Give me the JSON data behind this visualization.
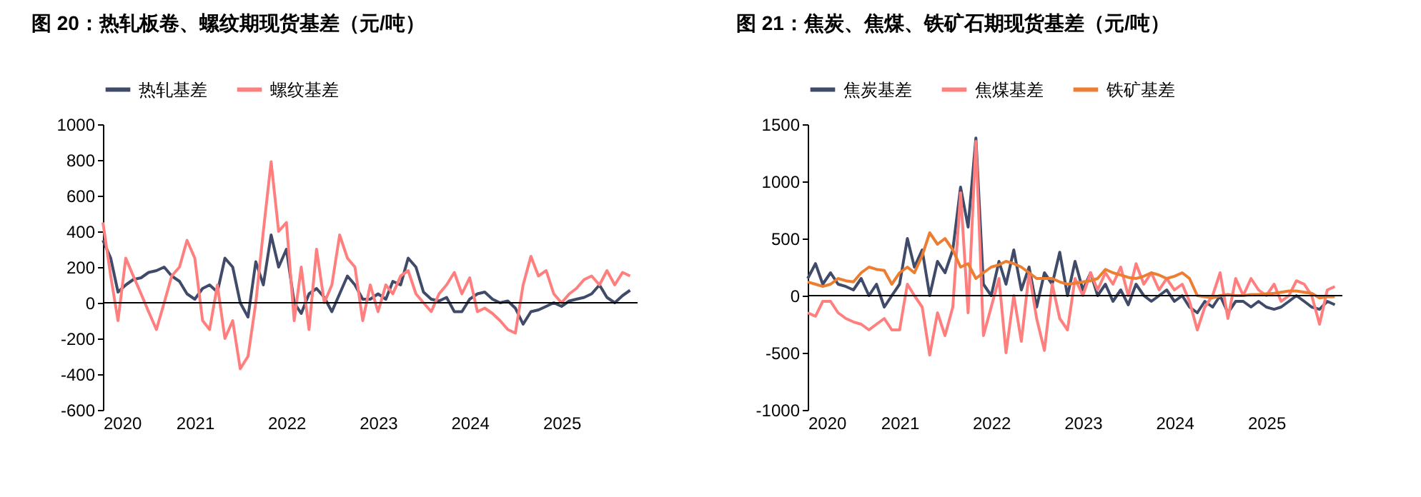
{
  "chart_data": [
    {
      "type": "line",
      "title": "图 20：热轧板卷、螺纹期现货基差（元/吨）",
      "legend": "top",
      "grid": false,
      "x": [
        "2020-01",
        "2020-02",
        "2020-03",
        "2020-04",
        "2020-05",
        "2020-06",
        "2020-07",
        "2020-08",
        "2020-09",
        "2020-10",
        "2020-11",
        "2020-12",
        "2021-01",
        "2021-02",
        "2021-03",
        "2021-04",
        "2021-05",
        "2021-06",
        "2021-07",
        "2021-08",
        "2021-09",
        "2021-10",
        "2021-11",
        "2021-12",
        "2022-01",
        "2022-02",
        "2022-03",
        "2022-04",
        "2022-05",
        "2022-06",
        "2022-07",
        "2022-08",
        "2022-09",
        "2022-10",
        "2022-11",
        "2022-12",
        "2023-01",
        "2023-02",
        "2023-03",
        "2023-04",
        "2023-05",
        "2023-06",
        "2023-07",
        "2023-08",
        "2023-09",
        "2023-10",
        "2023-11",
        "2023-12",
        "2024-01",
        "2024-02",
        "2024-03",
        "2024-04",
        "2024-05",
        "2024-06",
        "2024-07",
        "2024-08",
        "2024-09",
        "2024-10",
        "2024-11",
        "2024-12",
        "2025-01",
        "2025-02",
        "2025-03",
        "2025-04",
        "2025-05",
        "2025-06",
        "2025-07",
        "2025-08",
        "2025-09",
        "2025-10"
      ],
      "xlim": [
        "2020-01-01",
        "2025-10-31"
      ],
      "xticks": [
        "2020",
        "2021",
        "2022",
        "2023",
        "2024",
        "2025"
      ],
      "ylim": [
        -600,
        1000
      ],
      "yticks": [
        -600,
        -400,
        -200,
        0,
        200,
        400,
        600,
        800,
        1000
      ],
      "ref_lines": [
        {
          "axis": "y",
          "value": 0,
          "color": "#000000"
        }
      ],
      "series": [
        {
          "name": "热轧基差",
          "color": "#404b69",
          "values": [
            350,
            250,
            60,
            100,
            130,
            140,
            170,
            180,
            200,
            150,
            120,
            50,
            20,
            80,
            100,
            60,
            250,
            200,
            0,
            -80,
            230,
            100,
            380,
            200,
            300,
            0,
            -60,
            50,
            80,
            30,
            -50,
            50,
            150,
            100,
            20,
            20,
            50,
            20,
            120,
            100,
            250,
            200,
            60,
            20,
            10,
            30,
            -50,
            -50,
            20,
            50,
            60,
            20,
            0,
            10,
            -30,
            -120,
            -50,
            -40,
            -20,
            0,
            -20,
            10,
            20,
            30,
            50,
            100,
            30,
            0,
            40,
            70
          ]
        },
        {
          "name": "螺纹基差",
          "color": "#ff7f7f",
          "values": [
            450,
            150,
            -100,
            250,
            150,
            50,
            -50,
            -150,
            0,
            150,
            200,
            350,
            250,
            -100,
            -150,
            100,
            -200,
            -100,
            -370,
            -300,
            0,
            400,
            790,
            400,
            450,
            -100,
            200,
            -150,
            300,
            0,
            100,
            380,
            250,
            200,
            -100,
            100,
            -50,
            100,
            50,
            150,
            180,
            50,
            0,
            -50,
            50,
            100,
            170,
            50,
            140,
            -50,
            -30,
            -60,
            -100,
            -150,
            -170,
            100,
            260,
            150,
            180,
            50,
            0,
            50,
            80,
            130,
            150,
            100,
            180,
            100,
            170,
            150
          ]
        }
      ]
    },
    {
      "type": "line",
      "title": "图 21：焦炭、焦煤、铁矿石期现货基差（元/吨）",
      "legend": "top",
      "grid": false,
      "x": [
        "2020-01",
        "2020-02",
        "2020-03",
        "2020-04",
        "2020-05",
        "2020-06",
        "2020-07",
        "2020-08",
        "2020-09",
        "2020-10",
        "2020-11",
        "2020-12",
        "2021-01",
        "2021-02",
        "2021-03",
        "2021-04",
        "2021-05",
        "2021-06",
        "2021-07",
        "2021-08",
        "2021-09",
        "2021-10",
        "2021-11",
        "2021-12",
        "2022-01",
        "2022-02",
        "2022-03",
        "2022-04",
        "2022-05",
        "2022-06",
        "2022-07",
        "2022-08",
        "2022-09",
        "2022-10",
        "2022-11",
        "2022-12",
        "2023-01",
        "2023-02",
        "2023-03",
        "2023-04",
        "2023-05",
        "2023-06",
        "2023-07",
        "2023-08",
        "2023-09",
        "2023-10",
        "2023-11",
        "2023-12",
        "2024-01",
        "2024-02",
        "2024-03",
        "2024-04",
        "2024-05",
        "2024-06",
        "2024-07",
        "2024-08",
        "2024-09",
        "2024-10",
        "2024-11",
        "2024-12",
        "2025-01",
        "2025-02",
        "2025-03",
        "2025-04",
        "2025-05",
        "2025-06",
        "2025-07",
        "2025-08",
        "2025-09",
        "2025-10"
      ],
      "xlim": [
        "2020-01-01",
        "2025-10-31"
      ],
      "xticks": [
        "2020",
        "2021",
        "2022",
        "2023",
        "2024",
        "2025"
      ],
      "ylim": [
        -1000,
        1500
      ],
      "yticks": [
        -1000,
        -500,
        0,
        500,
        1000,
        1500
      ],
      "ref_lines": [
        {
          "axis": "y",
          "value": 0,
          "color": "#000000"
        }
      ],
      "series": [
        {
          "name": "焦炭基差",
          "color": "#404b69",
          "values": [
            150,
            280,
            100,
            200,
            100,
            80,
            50,
            150,
            0,
            100,
            -100,
            0,
            100,
            500,
            250,
            400,
            0,
            300,
            200,
            400,
            950,
            600,
            1380,
            100,
            0,
            300,
            100,
            400,
            50,
            250,
            -100,
            200,
            100,
            380,
            0,
            300,
            50,
            200,
            0,
            100,
            -50,
            50,
            -80,
            100,
            0,
            -50,
            0,
            50,
            -50,
            0,
            -100,
            -150,
            -50,
            -100,
            0,
            -150,
            -50,
            -50,
            -100,
            -50,
            -100,
            -120,
            -100,
            -50,
            0,
            -50,
            -100,
            -120,
            -50,
            -80
          ]
        },
        {
          "name": "焦煤基差",
          "color": "#ff7f7f",
          "values": [
            -150,
            -180,
            -50,
            -50,
            -150,
            -200,
            -230,
            -250,
            -300,
            -250,
            -200,
            -300,
            -300,
            100,
            0,
            -100,
            -520,
            -150,
            -350,
            -100,
            900,
            -150,
            1350,
            -350,
            -100,
            150,
            -500,
            0,
            -400,
            200,
            -200,
            -480,
            100,
            -200,
            -300,
            150,
            0,
            200,
            50,
            200,
            100,
            250,
            0,
            280,
            100,
            200,
            50,
            150,
            50,
            100,
            -50,
            -300,
            -100,
            0,
            200,
            -200,
            150,
            0,
            150,
            50,
            0,
            100,
            -50,
            0,
            130,
            100,
            0,
            -250,
            50,
            80
          ]
        },
        {
          "name": "铁矿基差",
          "color": "#ed7d31",
          "values": [
            120,
            100,
            80,
            100,
            150,
            130,
            120,
            200,
            250,
            230,
            220,
            100,
            200,
            250,
            200,
            350,
            550,
            450,
            500,
            400,
            250,
            280,
            150,
            200,
            250,
            270,
            300,
            280,
            250,
            200,
            150,
            150,
            150,
            120,
            100,
            110,
            120,
            130,
            150,
            230,
            200,
            180,
            160,
            150,
            170,
            200,
            180,
            150,
            170,
            200,
            150,
            0,
            -10,
            -20,
            0,
            10,
            0,
            0,
            10,
            10,
            15,
            20,
            30,
            40,
            40,
            30,
            20,
            -20,
            -10,
            -10
          ]
        }
      ]
    }
  ]
}
